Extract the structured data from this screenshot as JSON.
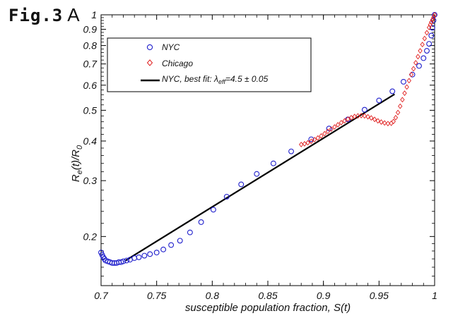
{
  "figure": {
    "label": "Fig.3",
    "panel": "A"
  },
  "chart_data": {
    "type": "scatter",
    "xlabel": "susceptible population fraction, S(t)",
    "ylabel": "Re(t)/R0",
    "xlim": [
      0.7,
      1.0
    ],
    "ylim": [
      0.14,
      1.0
    ],
    "yscale": "log",
    "grid": false,
    "legend_position": "top-left",
    "x_ticks": [
      0.7,
      0.75,
      0.8,
      0.85,
      0.9,
      0.95,
      1
    ],
    "x_tick_labels": [
      "0.7",
      "0.75",
      "0.8",
      "0.85",
      "0.9",
      "0.95",
      "1"
    ],
    "y_ticks": [
      0.2,
      0.3,
      0.4,
      0.5,
      0.6,
      0.7,
      0.8,
      0.9,
      1
    ],
    "y_tick_labels": [
      "0.2",
      "0.3",
      "0.4",
      "0.5",
      "0.6",
      "0.7",
      "0.8",
      "0.9",
      "1"
    ],
    "colors": {
      "nyc": "#1f1fcc",
      "chicago": "#e02020",
      "fit": "#000000"
    },
    "series": [
      {
        "name": "NYC",
        "marker": "circle",
        "x": [
          0.7,
          0.701,
          0.702,
          0.703,
          0.704,
          0.706,
          0.708,
          0.71,
          0.712,
          0.714,
          0.716,
          0.718,
          0.72,
          0.723,
          0.726,
          0.73,
          0.734,
          0.739,
          0.744,
          0.75,
          0.756,
          0.763,
          0.771,
          0.78,
          0.79,
          0.801,
          0.813,
          0.826,
          0.84,
          0.855,
          0.871,
          0.889,
          0.905,
          0.922,
          0.937,
          0.95,
          0.962,
          0.972,
          0.98,
          0.986,
          0.99,
          0.993,
          0.995,
          0.997,
          0.998,
          0.999,
          1.0
        ],
        "y": [
          0.178,
          0.175,
          0.172,
          0.17,
          0.168,
          0.167,
          0.166,
          0.165,
          0.165,
          0.165,
          0.166,
          0.166,
          0.167,
          0.168,
          0.169,
          0.171,
          0.172,
          0.174,
          0.176,
          0.178,
          0.182,
          0.188,
          0.194,
          0.206,
          0.222,
          0.243,
          0.267,
          0.292,
          0.315,
          0.34,
          0.371,
          0.405,
          0.438,
          0.468,
          0.502,
          0.537,
          0.574,
          0.615,
          0.648,
          0.69,
          0.73,
          0.77,
          0.81,
          0.86,
          0.91,
          0.96,
          1.0
        ]
      },
      {
        "name": "Chicago",
        "marker": "diamond",
        "x": [
          0.88,
          0.883,
          0.886,
          0.889,
          0.892,
          0.895,
          0.898,
          0.901,
          0.904,
          0.907,
          0.91,
          0.913,
          0.916,
          0.919,
          0.922,
          0.925,
          0.928,
          0.931,
          0.934,
          0.937,
          0.94,
          0.943,
          0.946,
          0.949,
          0.952,
          0.955,
          0.958,
          0.961,
          0.963,
          0.965,
          0.967,
          0.969,
          0.971,
          0.973,
          0.975,
          0.977,
          0.979,
          0.981,
          0.983,
          0.985,
          0.987,
          0.989,
          0.991,
          0.993,
          0.995,
          0.996,
          0.997,
          0.998,
          0.999,
          1.0
        ],
        "y": [
          0.39,
          0.392,
          0.395,
          0.399,
          0.404,
          0.409,
          0.415,
          0.422,
          0.429,
          0.436,
          0.443,
          0.45,
          0.457,
          0.463,
          0.469,
          0.474,
          0.478,
          0.48,
          0.481,
          0.48,
          0.477,
          0.473,
          0.468,
          0.463,
          0.459,
          0.456,
          0.454,
          0.455,
          0.461,
          0.474,
          0.492,
          0.515,
          0.54,
          0.566,
          0.592,
          0.62,
          0.648,
          0.676,
          0.706,
          0.738,
          0.77,
          0.806,
          0.842,
          0.878,
          0.912,
          0.93,
          0.948,
          0.965,
          0.982,
          1.0
        ]
      },
      {
        "name": "NYC, best fit: λeff=4.5 ± 0.05",
        "marker": "line",
        "x": [
          0.722,
          0.964
        ],
        "y": [
          0.168,
          0.562
        ]
      }
    ],
    "legend_entries": [
      "NYC",
      "Chicago",
      "NYC, best fit: λeff=4.5 ± 0.05"
    ],
    "fit_label_prefix": "NYC, best fit: ",
    "fit_label_lambda": "λ",
    "fit_label_sub": "eff",
    "fit_label_value": "=4.5 ± 0.05"
  }
}
